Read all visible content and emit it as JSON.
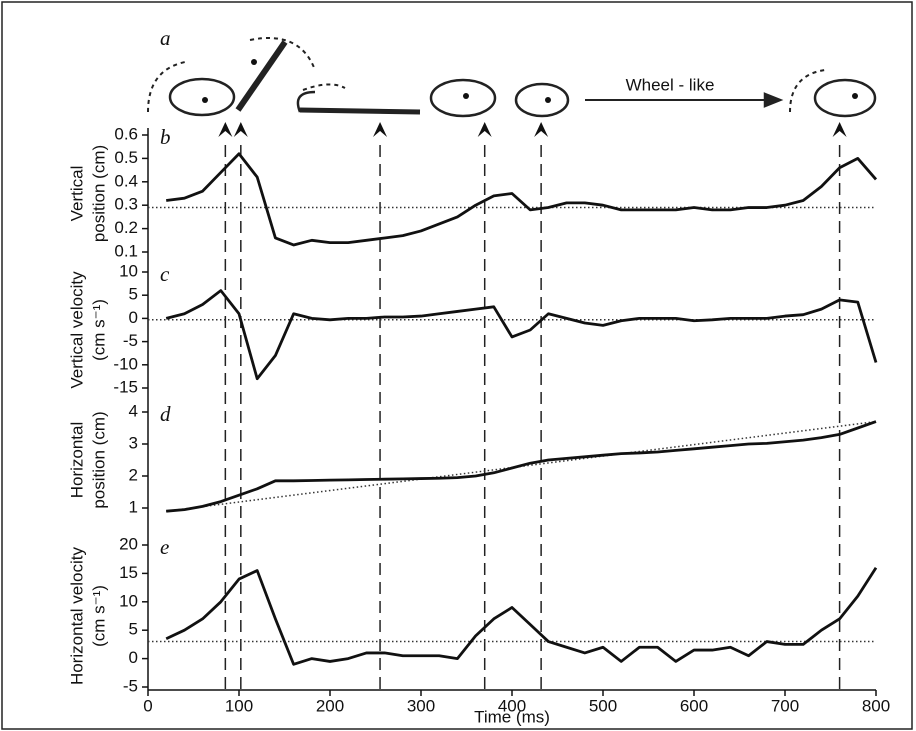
{
  "panel_a": {
    "label": "a",
    "annotation": "Wheel - like"
  },
  "events_ms": [
    85,
    102,
    255,
    370,
    432,
    760
  ],
  "chart_data": [
    {
      "type": "line",
      "label": "b",
      "ylabel": [
        "Vertical",
        "position (cm)"
      ],
      "x": [
        20,
        40,
        60,
        80,
        100,
        120,
        140,
        160,
        180,
        200,
        220,
        240,
        260,
        280,
        300,
        320,
        340,
        360,
        380,
        400,
        420,
        440,
        460,
        480,
        500,
        520,
        540,
        560,
        580,
        600,
        620,
        640,
        660,
        680,
        700,
        720,
        740,
        760,
        780,
        800
      ],
      "values": [
        0.32,
        0.33,
        0.36,
        0.44,
        0.52,
        0.42,
        0.16,
        0.13,
        0.15,
        0.14,
        0.14,
        0.15,
        0.16,
        0.17,
        0.19,
        0.22,
        0.25,
        0.3,
        0.34,
        0.35,
        0.28,
        0.29,
        0.31,
        0.31,
        0.3,
        0.28,
        0.28,
        0.28,
        0.28,
        0.29,
        0.28,
        0.28,
        0.29,
        0.29,
        0.3,
        0.32,
        0.38,
        0.46,
        0.5,
        0.41
      ],
      "reference_x": [
        0,
        800
      ],
      "reference_values": [
        0.29,
        0.29
      ],
      "xlim": [
        0,
        800
      ],
      "ylim": [
        0.1,
        0.6
      ],
      "yticks": [
        0.1,
        0.2,
        0.3,
        0.4,
        0.5,
        0.6
      ],
      "color": "#111111"
    },
    {
      "type": "line",
      "label": "c",
      "ylabel": [
        "Vertical velocity",
        "(cm s⁻¹)"
      ],
      "x": [
        20,
        40,
        60,
        80,
        100,
        120,
        140,
        160,
        180,
        200,
        220,
        240,
        260,
        280,
        300,
        320,
        340,
        360,
        380,
        400,
        420,
        440,
        460,
        480,
        500,
        520,
        540,
        560,
        580,
        600,
        620,
        640,
        660,
        680,
        700,
        720,
        740,
        760,
        780,
        800
      ],
      "values": [
        0,
        1,
        3,
        6,
        1,
        -13,
        -8,
        1,
        0,
        -0.3,
        0,
        0,
        0.3,
        0.3,
        0.5,
        1,
        1.5,
        2,
        2.5,
        -4,
        -2.5,
        1,
        0,
        -1,
        -1.5,
        -0.5,
        0,
        0,
        0,
        -0.5,
        -0.3,
        0,
        0,
        0,
        0.5,
        0.8,
        2,
        4,
        3.5,
        -9.5
      ],
      "reference_x": [
        0,
        800
      ],
      "reference_values": [
        -0.3,
        -0.3
      ],
      "xlim": [
        0,
        800
      ],
      "ylim": [
        -15,
        10
      ],
      "yticks": [
        -15,
        -10,
        -5,
        0,
        5,
        10
      ],
      "color": "#111111"
    },
    {
      "type": "line",
      "label": "d",
      "ylabel": [
        "Horizontal",
        "position (cm)"
      ],
      "x": [
        20,
        40,
        60,
        80,
        100,
        120,
        140,
        160,
        180,
        200,
        220,
        240,
        260,
        280,
        300,
        320,
        340,
        360,
        380,
        400,
        420,
        440,
        460,
        480,
        500,
        520,
        540,
        560,
        580,
        600,
        620,
        640,
        660,
        680,
        700,
        720,
        740,
        760,
        780,
        800
      ],
      "values": [
        0.9,
        0.95,
        1.05,
        1.2,
        1.4,
        1.6,
        1.85,
        1.85,
        1.86,
        1.87,
        1.88,
        1.89,
        1.9,
        1.91,
        1.92,
        1.93,
        1.95,
        2.0,
        2.1,
        2.25,
        2.4,
        2.5,
        2.55,
        2.6,
        2.65,
        2.7,
        2.72,
        2.75,
        2.8,
        2.85,
        2.9,
        2.95,
        3.0,
        3.02,
        3.07,
        3.12,
        3.2,
        3.3,
        3.5,
        3.7
      ],
      "reference_x": [
        20,
        800
      ],
      "reference_values": [
        0.9,
        3.7
      ],
      "xlim": [
        0,
        800
      ],
      "ylim": [
        1,
        4
      ],
      "yticks": [
        1,
        2,
        3,
        4
      ],
      "color": "#111111"
    },
    {
      "type": "line",
      "label": "e",
      "ylabel": [
        "Horizontal velocity",
        "(cm s⁻¹)"
      ],
      "xlabel": "Time (ms)",
      "x": [
        20,
        40,
        60,
        80,
        100,
        120,
        140,
        160,
        180,
        200,
        220,
        240,
        260,
        280,
        300,
        320,
        340,
        360,
        380,
        400,
        420,
        440,
        460,
        480,
        500,
        520,
        540,
        560,
        580,
        600,
        620,
        640,
        660,
        680,
        700,
        720,
        740,
        760,
        780,
        800
      ],
      "values": [
        3.5,
        5,
        7,
        10,
        14,
        15.5,
        7,
        -1,
        0,
        -0.5,
        0,
        1,
        1,
        0.5,
        0.5,
        0.5,
        0,
        4,
        7,
        9,
        6,
        3,
        2,
        1,
        2,
        -0.5,
        2,
        2,
        -0.5,
        1.5,
        1.5,
        2,
        0.5,
        3,
        2.5,
        2.5,
        5,
        7,
        11,
        16
      ],
      "reference_x": [
        0,
        800
      ],
      "reference_values": [
        3,
        3
      ],
      "xlim": [
        0,
        800
      ],
      "xticks": [
        0,
        100,
        200,
        300,
        400,
        500,
        600,
        700,
        800
      ],
      "ylim": [
        -5,
        20
      ],
      "yticks": [
        -5,
        0,
        5,
        10,
        15,
        20
      ],
      "color": "#111111"
    }
  ]
}
